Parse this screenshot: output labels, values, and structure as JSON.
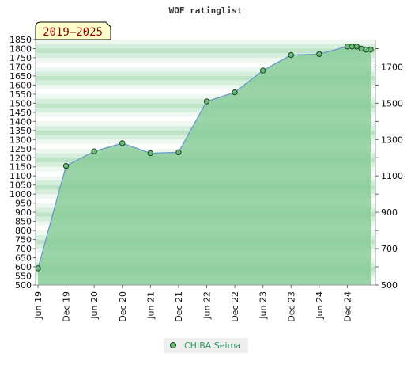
{
  "chart_data": {
    "type": "area",
    "title": "WOF ratinglist",
    "badge": "2019–2025",
    "xlabel": "",
    "ylabel": "",
    "grid": true,
    "legend_position": "bottom",
    "x_ticks": [
      "Jun 19",
      "Dec 19",
      "Jun 20",
      "Dec 20",
      "Jun 21",
      "Dec 21",
      "Jun 22",
      "Dec 22",
      "Jun 23",
      "Dec 23",
      "Jun 24",
      "Dec 24"
    ],
    "y_left_ticks": [
      500,
      550,
      600,
      650,
      700,
      750,
      800,
      850,
      900,
      950,
      1000,
      1050,
      1100,
      1150,
      1200,
      1250,
      1300,
      1350,
      1400,
      1450,
      1500,
      1550,
      1600,
      1650,
      1700,
      1750,
      1800,
      1850
    ],
    "y_right_ticks": [
      500,
      700,
      900,
      1100,
      1300,
      1500,
      1700
    ],
    "ylim": [
      500,
      1850
    ],
    "x_range_months": [
      0,
      72
    ],
    "series": [
      {
        "name": "CHIBA Seima",
        "color": "#6699cc",
        "marker_color": "#66bb77",
        "fill_color": "#88cc99",
        "points": [
          {
            "x": "2019-06",
            "m": 0,
            "y": 592
          },
          {
            "x": "2019-12",
            "m": 6,
            "y": 1155
          },
          {
            "x": "2020-06",
            "m": 12,
            "y": 1235
          },
          {
            "x": "2020-12",
            "m": 18,
            "y": 1280
          },
          {
            "x": "2021-06",
            "m": 24,
            "y": 1225
          },
          {
            "x": "2021-12",
            "m": 30,
            "y": 1230
          },
          {
            "x": "2022-06",
            "m": 36,
            "y": 1510
          },
          {
            "x": "2022-12",
            "m": 42,
            "y": 1560
          },
          {
            "x": "2023-06",
            "m": 48,
            "y": 1680
          },
          {
            "x": "2023-12",
            "m": 54,
            "y": 1765
          },
          {
            "x": "2024-06",
            "m": 60,
            "y": 1770
          },
          {
            "x": "2024-12",
            "m": 66,
            "y": 1812
          },
          {
            "x": "2025-01",
            "m": 67,
            "y": 1812
          },
          {
            "x": "2025-02",
            "m": 68,
            "y": 1812
          },
          {
            "x": "2025-03",
            "m": 69,
            "y": 1800
          },
          {
            "x": "2025-04",
            "m": 70,
            "y": 1795
          },
          {
            "x": "2025-05",
            "m": 71,
            "y": 1795
          }
        ]
      }
    ]
  }
}
